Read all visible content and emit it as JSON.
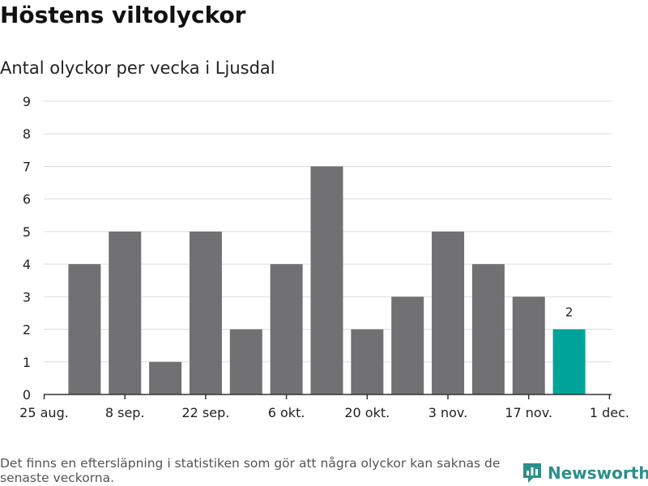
{
  "header": {
    "title": "Höstens viltolyckor",
    "subtitle": "Antal olyckor per vecka i Ljusdal"
  },
  "footer": {
    "note": "Det finns en eftersläpning i statistiken som gör att några olyckor kan saknas de senaste veckorna.",
    "brand": "Newsworthy"
  },
  "colors": {
    "bar": "#717073",
    "highlight": "#00a399",
    "grid": "#dddddd",
    "brand": "#2c8f8a"
  },
  "chart_data": {
    "type": "bar",
    "x_tick_labels": [
      "25 aug.",
      "8 sep.",
      "22 sep.",
      "6 okt.",
      "20 okt.",
      "3 nov.",
      "17 nov.",
      "1 dec."
    ],
    "y_ticks": [
      0,
      1,
      2,
      3,
      4,
      5,
      6,
      7,
      8,
      9
    ],
    "ylim": [
      0,
      9
    ],
    "values": [
      4,
      5,
      1,
      5,
      2,
      4,
      7,
      2,
      3,
      5,
      4,
      3,
      2
    ],
    "highlight_index": 12,
    "data_labels": [
      {
        "index": 12,
        "text": "2"
      }
    ],
    "grid": true,
    "legend": "none"
  }
}
